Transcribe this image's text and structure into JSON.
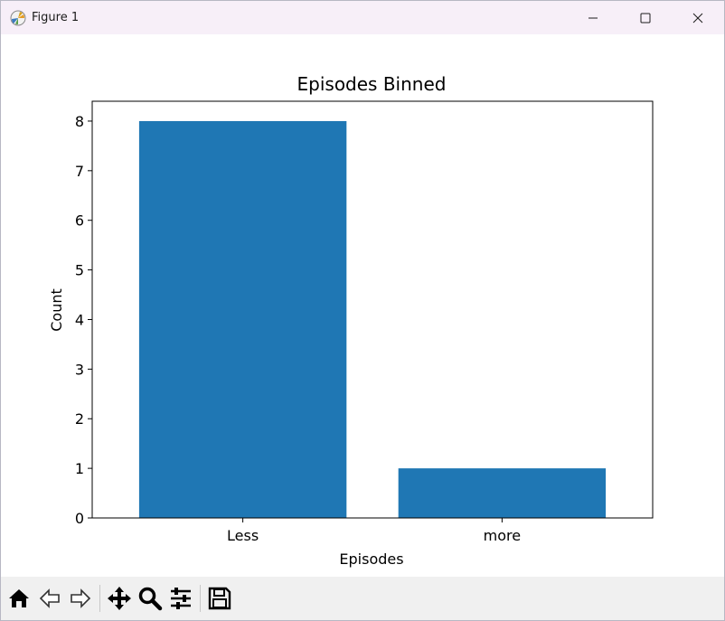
{
  "window": {
    "title": "Figure 1"
  },
  "toolbar": {
    "buttons": [
      "home-icon",
      "back-arrow-icon",
      "forward-arrow-icon",
      "pan-move-icon",
      "zoom-magnifier-icon",
      "configure-subplots-icon",
      "save-disk-icon"
    ]
  },
  "colors": {
    "bar": "#1f77b4",
    "titlebar": "#f7eff8",
    "toolbar": "#f0f0f0"
  },
  "chart_data": {
    "type": "bar",
    "title": "Episodes Binned",
    "xlabel": "Episodes",
    "ylabel": "Count",
    "categories": [
      "Less",
      "more"
    ],
    "values": [
      8,
      1
    ],
    "ylim": [
      0,
      8.4
    ],
    "yticks": [
      "0",
      "1",
      "2",
      "3",
      "4",
      "5",
      "6",
      "7",
      "8"
    ],
    "grid": false
  }
}
